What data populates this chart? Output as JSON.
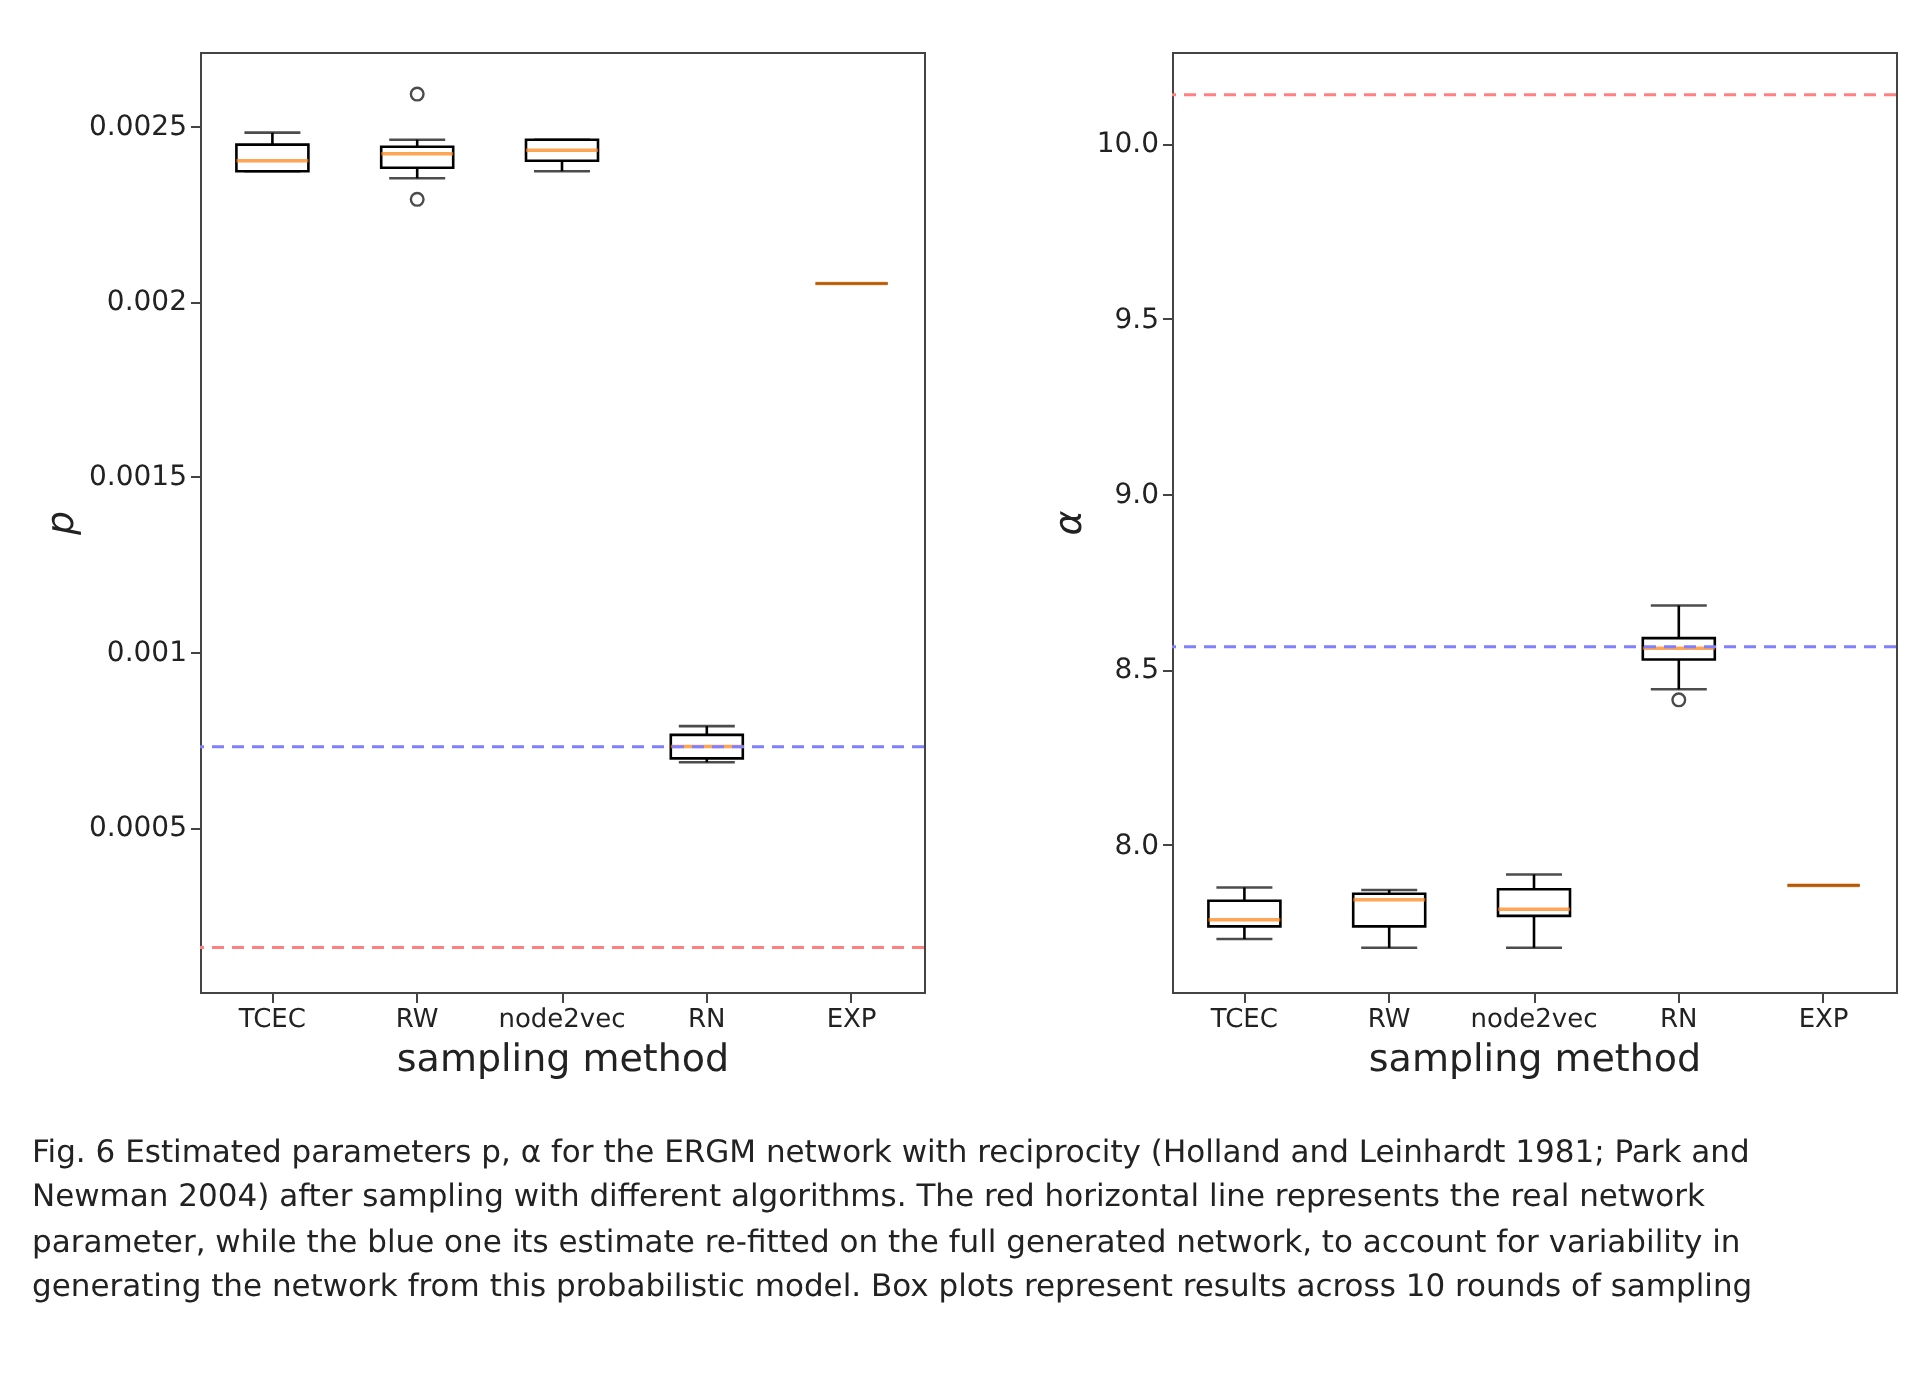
{
  "chart_data": [
    {
      "type": "box",
      "categories": [
        "TCEC",
        "RW",
        "node2vec",
        "RN",
        "EXP"
      ],
      "xlabel": "sampling method",
      "ylabel": "p",
      "ylim": [
        3e-05,
        0.00271
      ],
      "yticks": [
        0.0005,
        0.001,
        0.0015,
        0.002,
        0.0025
      ],
      "boxes": [
        {
          "low": 0.00237,
          "q1": 0.00237,
          "median": 0.0024,
          "q3": 0.002446,
          "high": 0.00248
        },
        {
          "low": 0.00235,
          "q1": 0.00238,
          "median": 0.00242,
          "q3": 0.00244,
          "high": 0.00246,
          "outliers": [
            0.00259,
            0.00229
          ]
        },
        {
          "low": 0.00237,
          "q1": 0.0024,
          "median": 0.00243,
          "q3": 0.00246,
          "high": 0.00246
        },
        {
          "low": 0.000685,
          "q1": 0.000696,
          "median": 0.00073,
          "q3": 0.000763,
          "high": 0.000788
        },
        {
          "low": 0.00205,
          "q1": 0.00205,
          "median": 0.00205,
          "q3": 0.00205,
          "high": 0.00205
        }
      ],
      "ref_lines": [
        {
          "axis": "y",
          "value": 0.000729,
          "color": "#8080ff",
          "line_style": "dashed"
        },
        {
          "axis": "y",
          "value": 0.000157,
          "color": "#ff8080",
          "line_style": "dashed"
        }
      ],
      "annotations": [
        "Fig. 6  Estimated parameters p, α for the ERGM network with reciprocity (Holland and Leinhardt 1981; Park and Newman 2004) after sampling with different algorithms. The red horizontal line represents the real network parameter, while the blue one its estimate re-fitted on the full generated network, to account for variability in generating the network from this probabilistic model. Box plots represent results across 10 rounds of sampling"
      ]
    },
    {
      "type": "box",
      "categories": [
        "TCEC",
        "RW",
        "node2vec",
        "RN",
        "EXP"
      ],
      "xlabel": "sampling method",
      "ylabel": "α",
      "ylim": [
        7.58,
        10.26
      ],
      "yticks": [
        {
          "value": 8,
          "label": "8.0"
        },
        8.5,
        {
          "value": 9,
          "label": "9.0"
        },
        9.5,
        {
          "value": 10,
          "label": "10.0"
        }
      ],
      "boxes": [
        {
          "low": 7.731,
          "q1": 7.767,
          "median": 7.786,
          "q3": 7.84,
          "high": 7.878
        },
        {
          "low": 7.706,
          "q1": 7.767,
          "median": 7.843,
          "q3": 7.86,
          "high": 7.871
        },
        {
          "low": 7.706,
          "q1": 7.797,
          "median": 7.816,
          "q3": 7.873,
          "high": 7.915
        },
        {
          "low": 8.443,
          "q1": 8.528,
          "median": 8.56,
          "q3": 8.589,
          "high": 8.682,
          "outliers": [
            8.413
          ]
        },
        {
          "low": 7.884,
          "q1": 7.884,
          "median": 7.884,
          "q3": 7.884,
          "high": 7.884
        }
      ],
      "ref_lines": [
        {
          "axis": "y",
          "value": 10.138,
          "color": "#ff8080",
          "line_style": "dashed"
        },
        {
          "axis": "y",
          "value": 8.564,
          "color": "#8080ff",
          "line_style": "dashed"
        }
      ]
    }
  ]
}
